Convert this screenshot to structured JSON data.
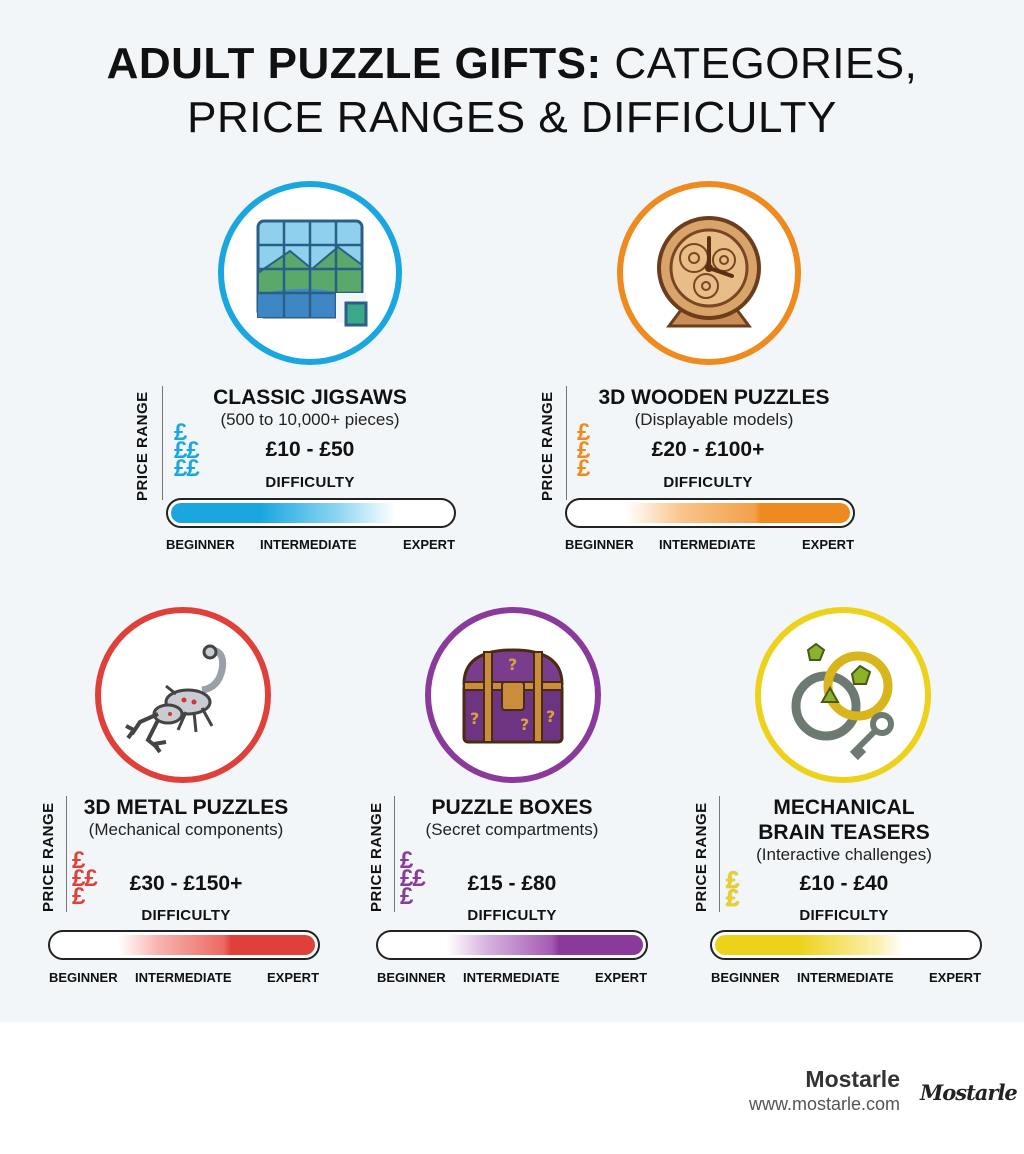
{
  "title": {
    "bold": "ADULT PUZZLE GIFTS:",
    "light": "CATEGORIES,",
    "line2": "PRICE RANGES & DIFFICULTY"
  },
  "common": {
    "price_range_label": "PRICE RANGE",
    "difficulty_label": "DIFFICULTY",
    "scale": {
      "beginner": "BEGINNER",
      "intermediate": "INTERMEDIATE",
      "expert": "EXPERT"
    }
  },
  "categories": [
    {
      "name": "CLASSIC JIGSAWS",
      "subtitle": "(500 to 10,000+ pieces)",
      "price": "£10 - £50",
      "pound_signs": 3,
      "color": "#1aa7e0",
      "difficulty_focus": "beginner",
      "icon": "jigsaw-icon"
    },
    {
      "name": "3D WOODEN PUZZLES",
      "subtitle": "(Displayable models)",
      "price": "£20 - £100+",
      "pound_signs": 3,
      "color": "#ee8a1e",
      "difficulty_focus": "expert",
      "icon": "wooden-clock-icon"
    },
    {
      "name": "3D METAL PUZZLES",
      "subtitle": "(Mechanical components)",
      "price": "£30 - £150+",
      "pound_signs": 3,
      "color": "#e0403a",
      "difficulty_focus": "expert",
      "icon": "scorpion-icon"
    },
    {
      "name": "PUZZLE BOXES",
      "subtitle": "(Secret compartments)",
      "price": "£15 - £80",
      "pound_signs": 3,
      "color": "#8a3a9a",
      "difficulty_focus": "expert",
      "icon": "treasure-chest-icon"
    },
    {
      "name_line1": "MECHANICAL",
      "name_line2": "BRAIN TEASERS",
      "subtitle": "(Interactive challenges)",
      "price": "£10 - £40",
      "pound_signs": 2,
      "color": "#ecd21a",
      "difficulty_focus": "beginner",
      "icon": "rings-key-icon"
    }
  ],
  "brand": {
    "name": "Mostarle",
    "url": "www.mostarle.com",
    "logo": "Mostarle"
  }
}
